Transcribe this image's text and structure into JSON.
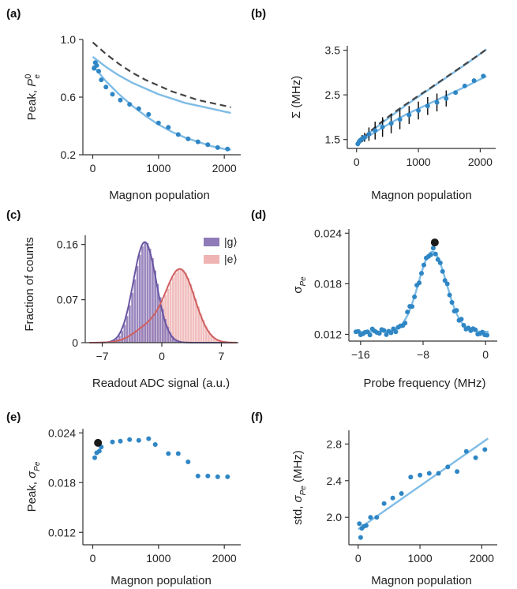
{
  "colors": {
    "dot": "#2f86c5",
    "fit": "#7fbce6",
    "dashed": "#444444",
    "g_fill": "#8f7bb8",
    "g_line": "#6a56a3",
    "e_fill": "#efb3b3",
    "e_line": "#cf5f60",
    "highlight": "#1a1a1a"
  },
  "chart_data": [
    {
      "panel": "(a)",
      "type": "scatter",
      "xlabel": "Magnon population",
      "ylabel_main": "Peak,",
      "ylabel_sym": "P",
      "ylabel_sup": "0",
      "ylabel_sub": "e",
      "xlim": [
        -150,
        2250
      ],
      "ylim": [
        0.2,
        1.0
      ],
      "xticks": [
        "0",
        "1000",
        "2000"
      ],
      "xtick_values": [
        0,
        1000,
        2000
      ],
      "yticks": [
        "0.2",
        "0.6",
        "1.0"
      ],
      "ytick_values": [
        0.2,
        0.6,
        1.0
      ],
      "series": [
        {
          "kind": "points",
          "x": [
            20,
            40,
            60,
            90,
            130,
            200,
            300,
            420,
            560,
            700,
            850,
            1000,
            1150,
            1300,
            1450,
            1600,
            1750,
            1900,
            2050
          ],
          "y": [
            0.8,
            0.84,
            0.82,
            0.78,
            0.72,
            0.67,
            0.62,
            0.58,
            0.55,
            0.52,
            0.48,
            0.42,
            0.39,
            0.34,
            0.31,
            0.29,
            0.27,
            0.25,
            0.24
          ]
        },
        {
          "kind": "fit",
          "x": [
            0,
            200,
            400,
            600,
            800,
            1000,
            1200,
            1400,
            1600,
            1800,
            2000,
            2100
          ],
          "y": [
            0.82,
            0.71,
            0.62,
            0.54,
            0.47,
            0.41,
            0.36,
            0.32,
            0.29,
            0.26,
            0.24,
            0.235
          ]
        },
        {
          "kind": "fit",
          "x": [
            0,
            200,
            400,
            600,
            800,
            1000,
            1200,
            1400,
            1600,
            1800,
            2000,
            2100
          ],
          "y": [
            0.88,
            0.81,
            0.75,
            0.7,
            0.66,
            0.62,
            0.59,
            0.56,
            0.54,
            0.52,
            0.5,
            0.49
          ]
        },
        {
          "kind": "dashed",
          "x": [
            0,
            200,
            400,
            600,
            800,
            1000,
            1200,
            1400,
            1600,
            1800,
            2000,
            2100
          ],
          "y": [
            0.98,
            0.9,
            0.83,
            0.77,
            0.72,
            0.68,
            0.64,
            0.61,
            0.58,
            0.56,
            0.54,
            0.53
          ]
        }
      ]
    },
    {
      "panel": "(b)",
      "type": "scatter",
      "xlabel": "Magnon population",
      "ylabel_main": "Σ (MHz)",
      "xlim": [
        -150,
        2250
      ],
      "ylim": [
        1.3,
        3.6
      ],
      "xticks": [
        "0",
        "1000",
        "2000"
      ],
      "xtick_values": [
        0,
        1000,
        2000
      ],
      "yticks": [
        "1.5",
        "2.5",
        "3.5"
      ],
      "ytick_values": [
        1.5,
        2.5,
        3.5
      ],
      "series": [
        {
          "kind": "points_err",
          "x": [
            20,
            40,
            60,
            90,
            130,
            200,
            300,
            420,
            560,
            700,
            850,
            1000,
            1150,
            1300,
            1450,
            1600,
            1750,
            1900,
            2050
          ],
          "y": [
            1.4,
            1.45,
            1.48,
            1.52,
            1.55,
            1.62,
            1.7,
            1.78,
            1.86,
            1.95,
            2.05,
            2.15,
            2.25,
            2.33,
            2.42,
            2.55,
            2.7,
            2.82,
            2.92
          ],
          "err": [
            0.05,
            0.05,
            0.06,
            0.08,
            0.1,
            0.15,
            0.2,
            0.22,
            0.22,
            0.22,
            0.2,
            0.2,
            0.2,
            0.2,
            0.18,
            0.0,
            0.0,
            0.0,
            0.0
          ]
        },
        {
          "kind": "fit",
          "x": [
            0,
            200,
            400,
            600,
            800,
            1000,
            1200,
            1400,
            1600,
            1800,
            2000,
            2100
          ],
          "y": [
            1.38,
            1.58,
            1.75,
            1.91,
            2.06,
            2.19,
            2.32,
            2.45,
            2.58,
            2.71,
            2.85,
            2.92
          ]
        },
        {
          "kind": "fit",
          "x": [
            0,
            200,
            400,
            600,
            800,
            1000,
            1200,
            1400,
            1600,
            1800,
            2000,
            2100
          ],
          "y": [
            1.38,
            1.64,
            1.86,
            2.07,
            2.27,
            2.46,
            2.65,
            2.84,
            3.03,
            3.22,
            3.42,
            3.52
          ]
        },
        {
          "kind": "dashed",
          "x": [
            0,
            200,
            400,
            600,
            800,
            1000,
            1200,
            1400,
            1600,
            1800,
            2000,
            2100
          ],
          "y": [
            1.38,
            1.66,
            1.89,
            2.1,
            2.29,
            2.48,
            2.66,
            2.85,
            3.04,
            3.23,
            3.42,
            3.52
          ]
        }
      ]
    },
    {
      "panel": "(c)",
      "type": "bar",
      "xlabel": "Readout ADC signal (a.u.)",
      "ylabel_main": "Fraction of counts",
      "xlim": [
        -9,
        9
      ],
      "ylim": [
        0,
        0.175
      ],
      "xticks": [
        "−7",
        "0",
        "7"
      ],
      "xtick_values": [
        -7,
        0,
        7
      ],
      "yticks": [
        "0",
        "0.07",
        "0.16"
      ],
      "ytick_values": [
        0,
        0.07,
        0.16
      ],
      "legend": [
        "|g⟩",
        "|e⟩"
      ],
      "g_mean": -2.0,
      "g_sigma": 1.35,
      "g_peak": 0.164,
      "e_mean": 2.2,
      "e_sigma": 1.7,
      "e_peak": 0.117,
      "e_shoulder": 0.025
    },
    {
      "panel": "(d)",
      "type": "scatter",
      "xlabel": "Probe frequency (MHz)",
      "ylabel_main": "σ",
      "ylabel_sub": "Pe",
      "xlim": [
        -17.5,
        1.5
      ],
      "ylim": [
        0.0112,
        0.0245
      ],
      "xticks": [
        "−16",
        "−8",
        "0"
      ],
      "xtick_values": [
        -16,
        -8,
        0
      ],
      "yticks": [
        "0.012",
        "0.018",
        "0.024"
      ],
      "ytick_values": [
        0.012,
        0.018,
        0.024
      ],
      "peak_center": -6.8,
      "peak_width": 1.8,
      "baseline": 0.0123,
      "amplitude": 0.0095,
      "highlight": {
        "x": -6.5,
        "y": 0.0229
      }
    },
    {
      "panel": "(e)",
      "type": "scatter",
      "xlabel": "Magnon population",
      "ylabel_main": "Peak,",
      "ylabel_sym": "σ",
      "ylabel_sub": "Pe",
      "xlim": [
        -150,
        2250
      ],
      "ylim": [
        0.0105,
        0.0245
      ],
      "xticks": [
        "0",
        "1000",
        "2000"
      ],
      "xtick_values": [
        0,
        1000,
        2000
      ],
      "yticks": [
        "0.012",
        "0.018",
        "0.024"
      ],
      "ytick_values": [
        0.012,
        0.018,
        0.024
      ],
      "series": [
        {
          "kind": "points",
          "x": [
            30,
            60,
            100,
            130,
            300,
            420,
            560,
            700,
            850,
            950,
            1150,
            1300,
            1450,
            1600,
            1750,
            1900,
            2050
          ],
          "y": [
            0.021,
            0.0216,
            0.0218,
            0.0223,
            0.0229,
            0.023,
            0.0232,
            0.0231,
            0.0233,
            0.0226,
            0.0215,
            0.0215,
            0.0205,
            0.0188,
            0.0188,
            0.0187,
            0.0187
          ]
        }
      ],
      "highlight": {
        "x": 80,
        "y": 0.0228
      }
    },
    {
      "panel": "(f)",
      "type": "scatter",
      "xlabel": "Magnon population",
      "ylabel_main": "std,",
      "ylabel_sym": "σ",
      "ylabel_sub": "Pe",
      "ylabel_unit": " (MHz)",
      "xlim": [
        -150,
        2250
      ],
      "ylim": [
        1.7,
        2.95
      ],
      "xticks": [
        "0",
        "1000",
        "2000"
      ],
      "xtick_values": [
        0,
        1000,
        2000
      ],
      "yticks": [
        "2.0",
        "2.4",
        "2.8"
      ],
      "ytick_values": [
        2.0,
        2.4,
        2.8
      ],
      "series": [
        {
          "kind": "points",
          "x": [
            20,
            40,
            60,
            90,
            130,
            200,
            300,
            420,
            560,
            700,
            850,
            1000,
            1150,
            1300,
            1450,
            1600,
            1750,
            1900,
            2050
          ],
          "y": [
            1.93,
            1.78,
            1.88,
            1.9,
            1.91,
            2.0,
            2.0,
            2.15,
            2.21,
            2.26,
            2.44,
            2.46,
            2.48,
            2.48,
            2.55,
            2.5,
            2.72,
            2.65,
            2.74
          ]
        },
        {
          "kind": "fit",
          "x": [
            0,
            2100
          ],
          "y": [
            1.87,
            2.86
          ]
        }
      ]
    }
  ],
  "panels": {
    "a": {
      "label": "(a)",
      "xlabel": "Magnon population"
    },
    "b": {
      "label": "(b)",
      "xlabel": "Magnon population"
    },
    "c": {
      "label": "(c)",
      "xlabel": "Readout ADC signal (a.u.)",
      "ylabel": "Fraction of counts",
      "legend_g": "|g⟩",
      "legend_e": "|e⟩"
    },
    "d": {
      "label": "(d)",
      "xlabel": "Probe frequency (MHz)"
    },
    "e": {
      "label": "(e)",
      "xlabel": "Magnon population"
    },
    "f": {
      "label": "(f)",
      "xlabel": "Magnon population"
    }
  }
}
